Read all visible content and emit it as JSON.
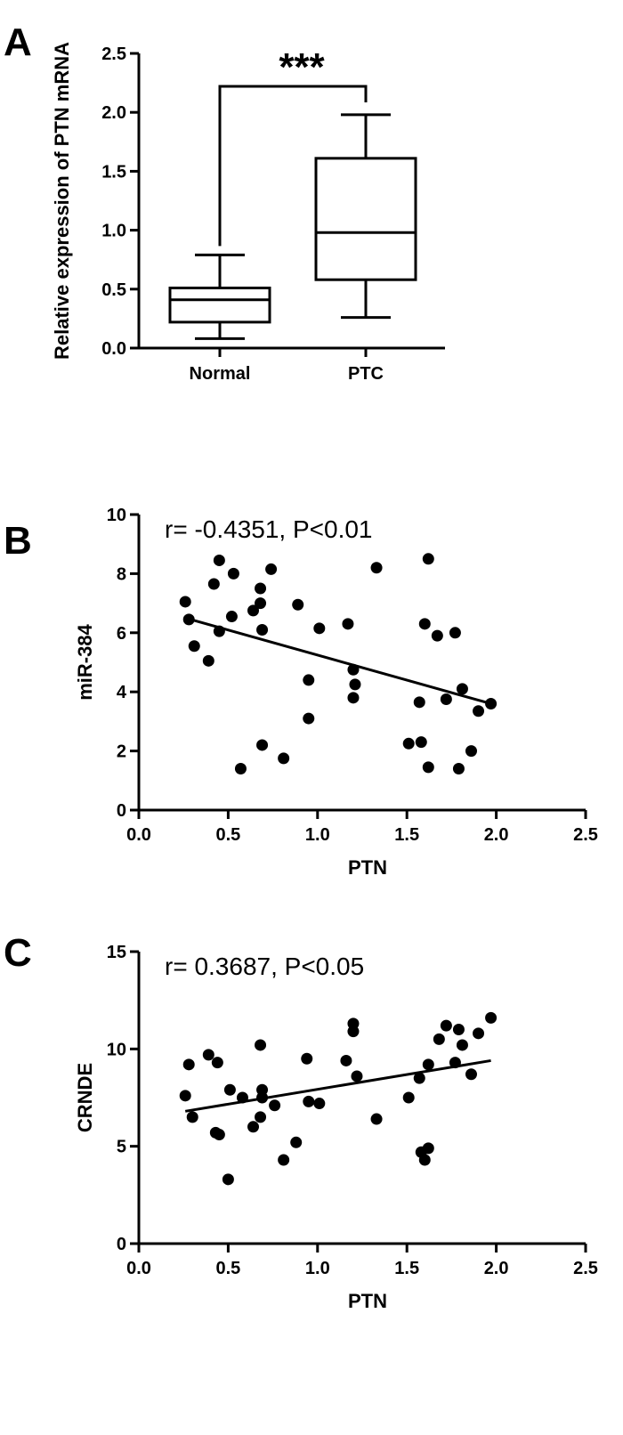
{
  "panels": {
    "a": {
      "letter": "A"
    },
    "b": {
      "letter": "B"
    },
    "c": {
      "letter": "C"
    }
  },
  "chart_data": [
    {
      "id": "A",
      "type": "box",
      "ylabel": "Relative expression of PTN mRNA",
      "ylim": [
        0,
        2.5
      ],
      "yticks": [
        "0.0",
        "0.5",
        "1.0",
        "1.5",
        "2.0",
        "2.5"
      ],
      "categories": [
        "Normal",
        "PTC"
      ],
      "boxes": [
        {
          "name": "Normal",
          "min": 0.08,
          "q1": 0.22,
          "median": 0.41,
          "q3": 0.51,
          "max": 0.79
        },
        {
          "name": "PTC",
          "min": 0.26,
          "q1": 0.58,
          "median": 0.98,
          "q3": 1.61,
          "max": 1.98
        }
      ],
      "significance": "***"
    },
    {
      "id": "B",
      "type": "scatter",
      "annotation": "r= -0.4351, P<0.01",
      "xlabel": "PTN",
      "ylabel": "miR-384",
      "xlim": [
        0,
        2.5
      ],
      "ylim": [
        0,
        10
      ],
      "xticks": [
        "0.0",
        "0.5",
        "1.0",
        "1.5",
        "2.0",
        "2.5"
      ],
      "yticks": [
        "0",
        "2",
        "4",
        "6",
        "8",
        "10"
      ],
      "points": [
        [
          0.26,
          7.05
        ],
        [
          0.28,
          6.45
        ],
        [
          0.31,
          5.55
        ],
        [
          0.39,
          5.05
        ],
        [
          0.42,
          7.65
        ],
        [
          0.45,
          8.45
        ],
        [
          0.45,
          6.05
        ],
        [
          0.52,
          6.55
        ],
        [
          0.53,
          8.0
        ],
        [
          0.57,
          1.4
        ],
        [
          0.64,
          6.75
        ],
        [
          0.68,
          7.0
        ],
        [
          0.68,
          7.5
        ],
        [
          0.69,
          6.1
        ],
        [
          0.69,
          2.2
        ],
        [
          0.74,
          8.15
        ],
        [
          0.81,
          1.75
        ],
        [
          0.89,
          6.95
        ],
        [
          0.95,
          4.4
        ],
        [
          0.95,
          3.1
        ],
        [
          1.01,
          6.15
        ],
        [
          1.17,
          6.3
        ],
        [
          1.2,
          4.75
        ],
        [
          1.2,
          3.8
        ],
        [
          1.21,
          4.25
        ],
        [
          1.33,
          8.2
        ],
        [
          1.51,
          2.25
        ],
        [
          1.57,
          3.65
        ],
        [
          1.58,
          2.3
        ],
        [
          1.6,
          6.3
        ],
        [
          1.62,
          8.5
        ],
        [
          1.62,
          1.45
        ],
        [
          1.67,
          5.9
        ],
        [
          1.72,
          3.75
        ],
        [
          1.77,
          6.0
        ],
        [
          1.79,
          1.4
        ],
        [
          1.81,
          4.1
        ],
        [
          1.86,
          2.0
        ],
        [
          1.9,
          3.35
        ],
        [
          1.97,
          3.6
        ]
      ],
      "fit": [
        [
          0.26,
          6.5
        ],
        [
          1.97,
          3.6
        ]
      ]
    },
    {
      "id": "C",
      "type": "scatter",
      "annotation": "r= 0.3687, P<0.05",
      "xlabel": "PTN",
      "ylabel": "CRNDE",
      "xlim": [
        0,
        2.5
      ],
      "ylim": [
        0,
        15
      ],
      "xticks": [
        "0.0",
        "0.5",
        "1.0",
        "1.5",
        "2.0",
        "2.5"
      ],
      "yticks": [
        "0",
        "5",
        "10",
        "15"
      ],
      "points": [
        [
          0.26,
          7.6
        ],
        [
          0.28,
          9.2
        ],
        [
          0.3,
          6.5
        ],
        [
          0.39,
          9.7
        ],
        [
          0.43,
          5.7
        ],
        [
          0.44,
          9.3
        ],
        [
          0.45,
          5.6
        ],
        [
          0.5,
          3.3
        ],
        [
          0.51,
          7.9
        ],
        [
          0.58,
          7.5
        ],
        [
          0.64,
          6.0
        ],
        [
          0.68,
          6.5
        ],
        [
          0.68,
          10.2
        ],
        [
          0.69,
          7.9
        ],
        [
          0.69,
          7.5
        ],
        [
          0.76,
          7.1
        ],
        [
          0.81,
          4.3
        ],
        [
          0.88,
          5.2
        ],
        [
          0.94,
          9.5
        ],
        [
          0.95,
          7.3
        ],
        [
          1.01,
          7.2
        ],
        [
          1.16,
          9.4
        ],
        [
          1.2,
          11.3
        ],
        [
          1.2,
          10.9
        ],
        [
          1.22,
          8.6
        ],
        [
          1.33,
          6.4
        ],
        [
          1.51,
          7.5
        ],
        [
          1.57,
          8.5
        ],
        [
          1.58,
          4.7
        ],
        [
          1.6,
          4.3
        ],
        [
          1.62,
          9.2
        ],
        [
          1.62,
          4.9
        ],
        [
          1.68,
          10.5
        ],
        [
          1.72,
          11.2
        ],
        [
          1.77,
          9.3
        ],
        [
          1.79,
          11.0
        ],
        [
          1.81,
          10.2
        ],
        [
          1.86,
          8.7
        ],
        [
          1.9,
          10.8
        ],
        [
          1.97,
          11.6
        ]
      ],
      "fit": [
        [
          0.26,
          6.8
        ],
        [
          1.97,
          9.4
        ]
      ]
    }
  ]
}
